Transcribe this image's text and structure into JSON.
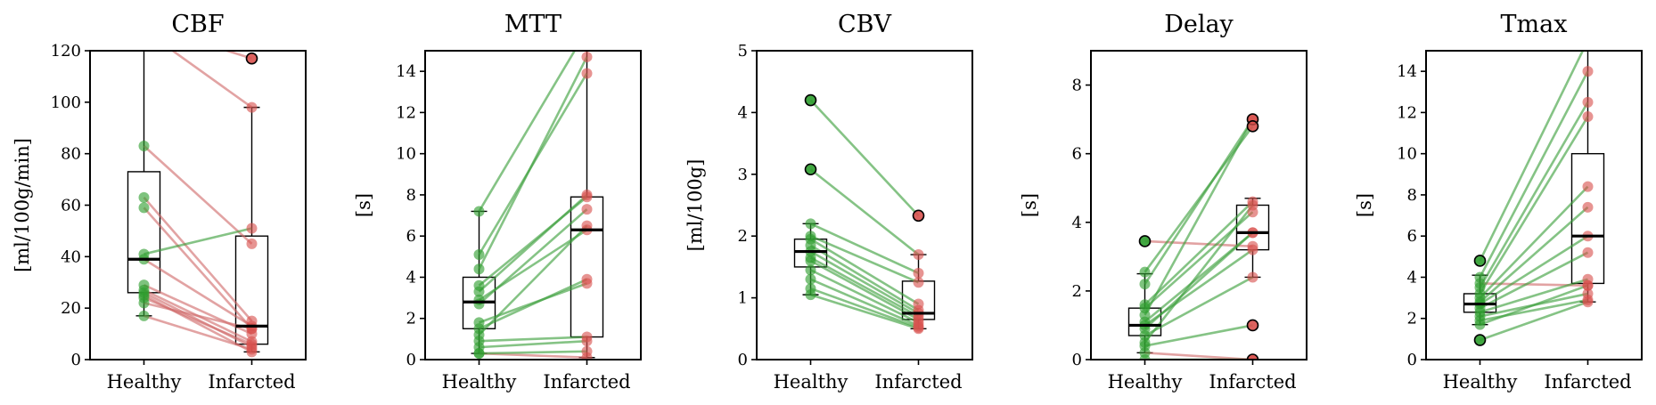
{
  "figure": {
    "categories": [
      "Healthy",
      "Infarcted"
    ],
    "colors": {
      "healthy_point": "#2e9e2e",
      "infarcted_point": "#d9534f",
      "line_up": "#3a9e3a",
      "line_down": "#d06b6b",
      "box": "#000000",
      "median": "#000000"
    }
  },
  "chart_data": [
    {
      "type": "box",
      "title": "CBF",
      "ylabel": "[ml/100g/min]",
      "ylim": [
        0,
        120
      ],
      "yticks": [
        0,
        20,
        40,
        60,
        80,
        100,
        120
      ],
      "categories": [
        "Healthy",
        "Infarcted"
      ],
      "box": {
        "Healthy": {
          "q1": 26,
          "median": 39,
          "q3": 73,
          "whisker_low": 17,
          "whisker_high": 130
        },
        "Infarcted": {
          "q1": 6,
          "median": 13,
          "q3": 48,
          "whisker_low": 3,
          "whisker_high": 98
        }
      },
      "pairs": [
        [
          130,
          117
        ],
        [
          83,
          45
        ],
        [
          63,
          15
        ],
        [
          59,
          12
        ],
        [
          41,
          51
        ],
        [
          39,
          13
        ],
        [
          29,
          10
        ],
        [
          27,
          7
        ],
        [
          26,
          5
        ],
        [
          25,
          3
        ],
        [
          24,
          6
        ],
        [
          22,
          12
        ],
        [
          17,
          4
        ],
        [
          128,
          98
        ]
      ],
      "outliers": {
        "Healthy": [],
        "Infarcted": [
          117
        ]
      }
    },
    {
      "type": "box",
      "title": "MTT",
      "ylabel": "[s]",
      "ylim": [
        0,
        15
      ],
      "yticks": [
        0,
        2,
        4,
        6,
        8,
        10,
        12,
        14
      ],
      "categories": [
        "Healthy",
        "Infarcted"
      ],
      "box": {
        "Healthy": {
          "q1": 1.5,
          "median": 2.8,
          "q3": 4.0,
          "whisker_low": 0.3,
          "whisker_high": 7.2
        },
        "Infarcted": {
          "q1": 1.1,
          "median": 6.3,
          "q3": 7.9,
          "whisker_low": 0.1,
          "whisker_high": 16
        }
      },
      "pairs": [
        [
          7.2,
          16
        ],
        [
          5.1,
          13.9
        ],
        [
          4.4,
          14.7
        ],
        [
          3.6,
          7.9
        ],
        [
          3.3,
          8.0
        ],
        [
          2.9,
          6.3
        ],
        [
          2.7,
          7.3
        ],
        [
          1.8,
          3.7
        ],
        [
          1.5,
          3.9
        ],
        [
          1.2,
          6.5
        ],
        [
          0.9,
          1.1
        ],
        [
          0.6,
          0.9
        ],
        [
          0.3,
          0.1
        ],
        [
          0.3,
          0.4
        ]
      ],
      "outliers": {
        "Healthy": [],
        "Infarcted": []
      }
    },
    {
      "type": "box",
      "title": "CBV",
      "ylabel": "[ml/100g]",
      "ylim": [
        0,
        5
      ],
      "yticks": [
        0,
        1,
        2,
        3,
        4,
        5
      ],
      "categories": [
        "Healthy",
        "Infarcted"
      ],
      "box": {
        "Healthy": {
          "q1": 1.5,
          "median": 1.75,
          "q3": 1.95,
          "whisker_low": 1.05,
          "whisker_high": 2.2
        },
        "Infarcted": {
          "q1": 0.65,
          "median": 0.75,
          "q3": 1.27,
          "whisker_low": 0.5,
          "whisker_high": 1.7
        }
      },
      "pairs": [
        [
          4.2,
          2.33
        ],
        [
          3.08,
          1.7
        ],
        [
          2.2,
          1.4
        ],
        [
          2.0,
          1.25
        ],
        [
          1.95,
          0.9
        ],
        [
          1.85,
          0.8
        ],
        [
          1.75,
          0.75
        ],
        [
          1.65,
          0.7
        ],
        [
          1.6,
          0.65
        ],
        [
          1.45,
          0.6
        ],
        [
          1.3,
          0.55
        ],
        [
          1.15,
          0.52
        ],
        [
          1.05,
          0.5
        ]
      ],
      "outliers": {
        "Healthy": [
          4.2,
          3.08
        ],
        "Infarcted": [
          2.33
        ]
      }
    },
    {
      "type": "box",
      "title": "Delay",
      "ylabel": "[s]",
      "ylim": [
        0,
        9
      ],
      "yticks": [
        0,
        2,
        4,
        6,
        8
      ],
      "categories": [
        "Healthy",
        "Infarcted"
      ],
      "box": {
        "Healthy": {
          "q1": 0.7,
          "median": 1.0,
          "q3": 1.5,
          "whisker_low": 0.2,
          "whisker_high": 2.5
        },
        "Infarcted": {
          "q1": 3.2,
          "median": 3.7,
          "q3": 4.5,
          "whisker_low": 2.4,
          "whisker_high": 4.7
        }
      },
      "pairs": [
        [
          3.45,
          3.3
        ],
        [
          2.55,
          6.8
        ],
        [
          2.2,
          7.0
        ],
        [
          1.6,
          4.6
        ],
        [
          1.5,
          4.3
        ],
        [
          1.3,
          7.0
        ],
        [
          1.1,
          3.7
        ],
        [
          1.0,
          3.2
        ],
        [
          0.9,
          3.7
        ],
        [
          0.7,
          2.4
        ],
        [
          0.5,
          4.5
        ],
        [
          0.4,
          1.0
        ],
        [
          0.2,
          0.0
        ],
        [
          0.0,
          0.0
        ]
      ],
      "outliers": {
        "Healthy": [
          3.45
        ],
        "Infarcted": [
          7.0,
          6.8,
          1.0,
          0.0
        ]
      }
    },
    {
      "type": "box",
      "title": "Tmax",
      "ylabel": "[s]",
      "ylim": [
        0,
        15
      ],
      "yticks": [
        0,
        2,
        4,
        6,
        8,
        10,
        12,
        14
      ],
      "categories": [
        "Healthy",
        "Infarcted"
      ],
      "box": {
        "Healthy": {
          "q1": 2.3,
          "median": 2.7,
          "q3": 3.2,
          "whisker_low": 1.7,
          "whisker_high": 4.1
        },
        "Infarcted": {
          "q1": 3.7,
          "median": 6.0,
          "q3": 10.0,
          "whisker_low": 2.8,
          "whisker_high": 15.5
        }
      },
      "pairs": [
        [
          4.8,
          15.5
        ],
        [
          4.0,
          14.0
        ],
        [
          3.7,
          3.6
        ],
        [
          3.5,
          12.5
        ],
        [
          3.2,
          11.8
        ],
        [
          3.0,
          8.4
        ],
        [
          2.8,
          7.4
        ],
        [
          2.7,
          6.0
        ],
        [
          2.5,
          5.2
        ],
        [
          2.3,
          3.9
        ],
        [
          2.1,
          3.2
        ],
        [
          1.9,
          2.9
        ],
        [
          1.7,
          3.6
        ],
        [
          0.95,
          2.8
        ]
      ],
      "outliers": {
        "Healthy": [
          4.8,
          0.95
        ],
        "Infarcted": []
      }
    }
  ]
}
